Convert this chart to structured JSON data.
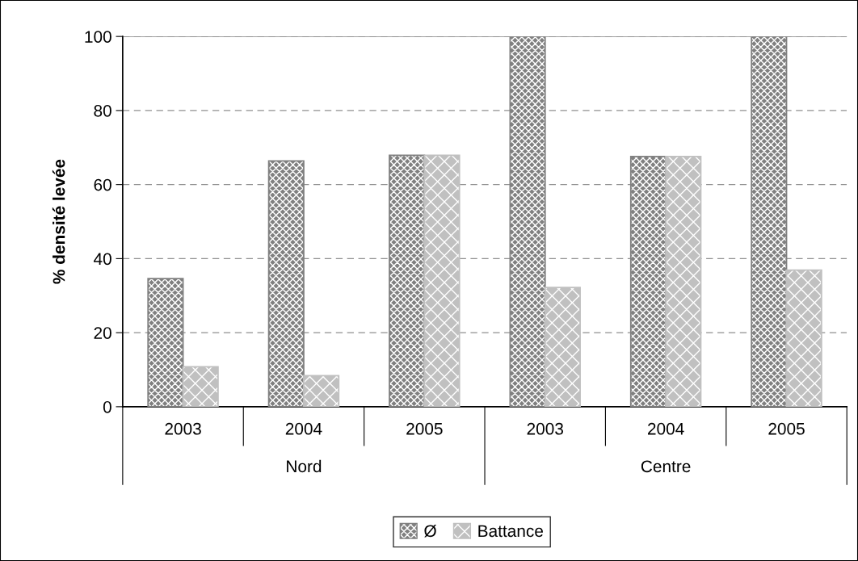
{
  "chart_data": {
    "type": "bar",
    "ylabel": "% densité levée",
    "categories": [
      "2003",
      "2004",
      "2005",
      "2003",
      "2004",
      "2005"
    ],
    "series": [
      {
        "name": "Ø",
        "color": "#808080",
        "values": [
          34.6,
          66.4,
          67.9,
          100,
          67.6,
          100
        ]
      },
      {
        "name": "Battance",
        "color": "#c0c0c0",
        "values": [
          10.8,
          8.4,
          67.9,
          32.2,
          67.6,
          36.9
        ]
      }
    ],
    "annotations": [
      "Nord",
      "Centre"
    ],
    "ylim": [
      0,
      100
    ],
    "yticks": [
      0,
      20,
      40,
      60,
      80,
      100
    ],
    "grid": "y",
    "legend": "bottom"
  }
}
